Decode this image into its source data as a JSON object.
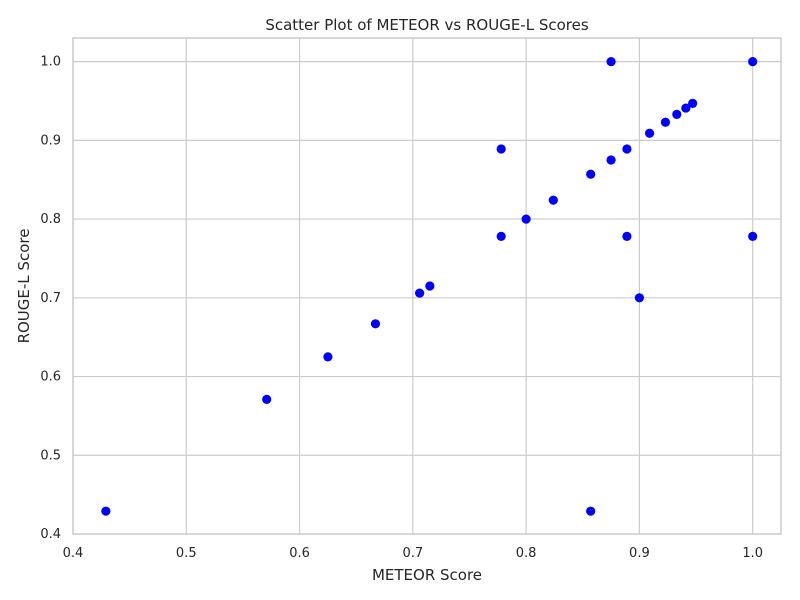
{
  "chart_data": {
    "type": "scatter",
    "title": "Scatter Plot of METEOR vs ROUGE-L Scores",
    "xlabel": "METEOR Score",
    "ylabel": "ROUGE-L Score",
    "xlim": [
      0.4,
      1.025
    ],
    "ylim": [
      0.4,
      1.03
    ],
    "xticks": [
      0.4,
      0.5,
      0.6,
      0.7,
      0.8,
      0.9,
      1.0
    ],
    "yticks": [
      0.4,
      0.5,
      0.6,
      0.7,
      0.8,
      0.9,
      1.0
    ],
    "xtick_labels": [
      "0.4",
      "0.5",
      "0.6",
      "0.7",
      "0.8",
      "0.9",
      "1.0"
    ],
    "ytick_labels": [
      "0.4",
      "0.5",
      "0.6",
      "0.7",
      "0.8",
      "0.9",
      "1.0"
    ],
    "grid": true,
    "marker_color": "#0000ff",
    "points": [
      {
        "x": 0.429,
        "y": 0.429
      },
      {
        "x": 0.571,
        "y": 0.571
      },
      {
        "x": 0.625,
        "y": 0.625
      },
      {
        "x": 0.667,
        "y": 0.667
      },
      {
        "x": 0.706,
        "y": 0.706
      },
      {
        "x": 0.715,
        "y": 0.715
      },
      {
        "x": 0.778,
        "y": 0.778
      },
      {
        "x": 0.778,
        "y": 0.889
      },
      {
        "x": 0.8,
        "y": 0.8
      },
      {
        "x": 0.824,
        "y": 0.824
      },
      {
        "x": 0.857,
        "y": 0.857
      },
      {
        "x": 0.857,
        "y": 0.429
      },
      {
        "x": 0.875,
        "y": 1.0
      },
      {
        "x": 0.875,
        "y": 0.875
      },
      {
        "x": 0.889,
        "y": 0.889
      },
      {
        "x": 0.889,
        "y": 0.778
      },
      {
        "x": 0.9,
        "y": 0.7
      },
      {
        "x": 0.909,
        "y": 0.909
      },
      {
        "x": 0.923,
        "y": 0.923
      },
      {
        "x": 0.933,
        "y": 0.933
      },
      {
        "x": 0.941,
        "y": 0.941
      },
      {
        "x": 0.947,
        "y": 0.947
      },
      {
        "x": 1.0,
        "y": 1.0
      },
      {
        "x": 1.0,
        "y": 0.778
      }
    ]
  }
}
